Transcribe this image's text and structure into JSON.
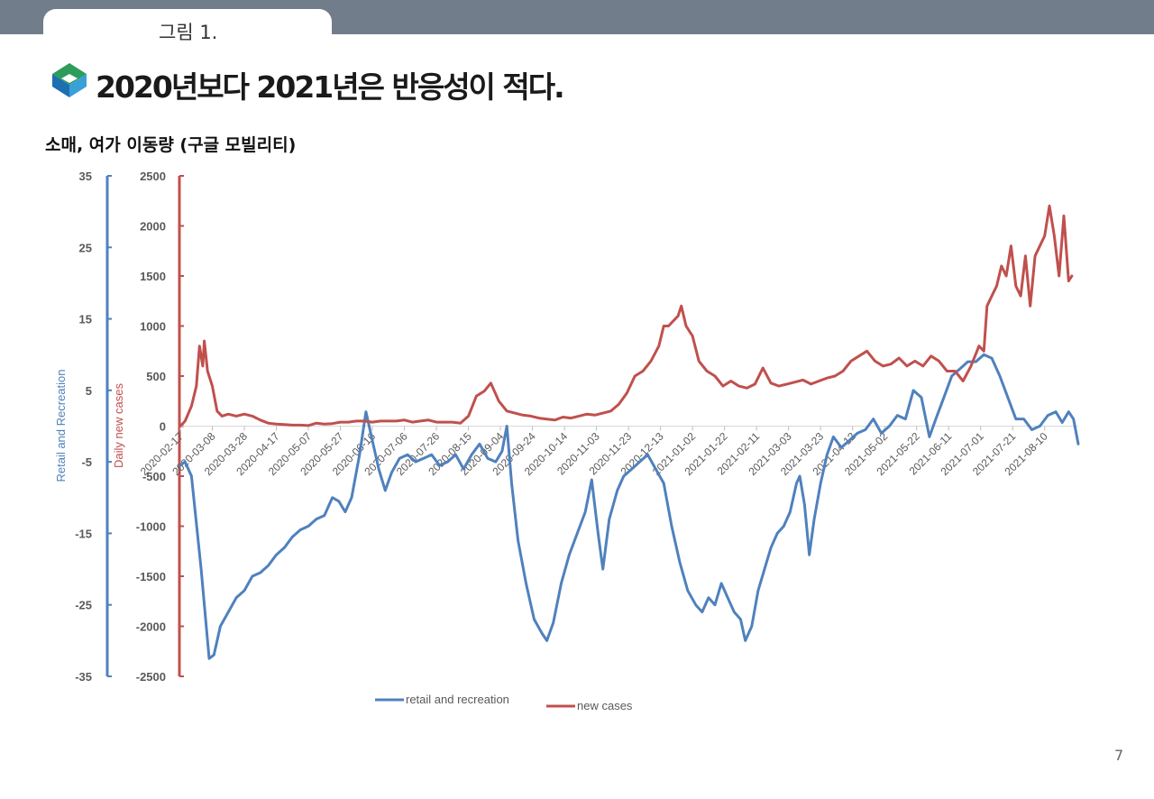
{
  "header": {
    "tab_label": "그림 1."
  },
  "title": "2020년보다 2021년은 반응성이 적다.",
  "subtitle": "소매, 여가 이동량 (구글 모빌리티)",
  "page_number": "7",
  "colors": {
    "retail": "#4f81bd",
    "cases": "#c0504d",
    "topbar": "#717d8b"
  },
  "chart_data": {
    "type": "line",
    "x_tick_labels": [
      "2020-02-17",
      "2020-03-08",
      "2020-03-28",
      "2020-04-17",
      "2020-05-07",
      "2020-05-27",
      "2020-06-16",
      "2020-07-06",
      "2020-07-26",
      "2020-08-15",
      "2020-09-04",
      "2020-09-24",
      "2020-10-14",
      "2020-11-03",
      "2020-11-23",
      "2020-12-13",
      "2021-01-02",
      "2021-01-22",
      "2021-02-11",
      "2021-03-03",
      "2021-03-23",
      "2021-04-12",
      "2021-05-02",
      "2021-05-22",
      "2021-06-11",
      "2021-07-01",
      "2021-07-21",
      "2021-08-10"
    ],
    "left_axis": {
      "title": "Retail and Recreation",
      "ticks": [
        "35",
        "25",
        "15",
        "5",
        "-5",
        "-15",
        "-25",
        "-35"
      ],
      "range": [
        -35,
        35
      ]
    },
    "right_axis": {
      "title": "Daily new cases",
      "ticks": [
        "2500",
        "2000",
        "1500",
        "1000",
        "500",
        "0",
        "-500",
        "-1000",
        "-1500",
        "-2000",
        "-2500"
      ],
      "range": [
        -2500,
        2500
      ]
    },
    "series": [
      {
        "name": "retail and recreation",
        "axis": "left",
        "points": [
          [
            "2020-02-17",
            -5.5
          ],
          [
            "2020-02-20",
            -5
          ],
          [
            "2020-02-24",
            -7
          ],
          [
            "2020-03-01",
            -20
          ],
          [
            "2020-03-06",
            -32.5
          ],
          [
            "2020-03-09",
            -32
          ],
          [
            "2020-03-13",
            -28
          ],
          [
            "2020-03-18",
            -26
          ],
          [
            "2020-03-23",
            -24
          ],
          [
            "2020-03-28",
            -23
          ],
          [
            "2020-04-02",
            -21
          ],
          [
            "2020-04-07",
            -20.5
          ],
          [
            "2020-04-12",
            -19.5
          ],
          [
            "2020-04-17",
            -18
          ],
          [
            "2020-04-22",
            -17
          ],
          [
            "2020-04-27",
            -15.5
          ],
          [
            "2020-05-02",
            -14.5
          ],
          [
            "2020-05-07",
            -14
          ],
          [
            "2020-05-12",
            -13
          ],
          [
            "2020-05-17",
            -12.5
          ],
          [
            "2020-05-22",
            -10
          ],
          [
            "2020-05-26",
            -10.5
          ],
          [
            "2020-05-30",
            -12
          ],
          [
            "2020-06-03",
            -10
          ],
          [
            "2020-06-08",
            -4
          ],
          [
            "2020-06-12",
            2
          ],
          [
            "2020-06-16",
            -2
          ],
          [
            "2020-06-20",
            -6
          ],
          [
            "2020-06-24",
            -9
          ],
          [
            "2020-06-28",
            -6.5
          ],
          [
            "2020-07-03",
            -4.5
          ],
          [
            "2020-07-08",
            -4
          ],
          [
            "2020-07-13",
            -5
          ],
          [
            "2020-07-18",
            -4.5
          ],
          [
            "2020-07-23",
            -4
          ],
          [
            "2020-07-28",
            -5.5
          ],
          [
            "2020-08-02",
            -5
          ],
          [
            "2020-08-07",
            -4
          ],
          [
            "2020-08-12",
            -6
          ],
          [
            "2020-08-17",
            -4
          ],
          [
            "2020-08-22",
            -2.5
          ],
          [
            "2020-08-27",
            -4.5
          ],
          [
            "2020-09-01",
            -5
          ],
          [
            "2020-09-05",
            -3.5
          ],
          [
            "2020-09-08",
            0
          ],
          [
            "2020-09-11",
            -8
          ],
          [
            "2020-09-15",
            -16
          ],
          [
            "2020-09-20",
            -22
          ],
          [
            "2020-09-25",
            -27
          ],
          [
            "2020-09-30",
            -29
          ],
          [
            "2020-10-03",
            -30
          ],
          [
            "2020-10-07",
            -27.5
          ],
          [
            "2020-10-12",
            -22
          ],
          [
            "2020-10-17",
            -18
          ],
          [
            "2020-10-22",
            -15
          ],
          [
            "2020-10-27",
            -12
          ],
          [
            "2020-10-31",
            -7.5
          ],
          [
            "2020-11-04",
            -15
          ],
          [
            "2020-11-07",
            -20
          ],
          [
            "2020-11-11",
            -13
          ],
          [
            "2020-11-16",
            -9
          ],
          [
            "2020-11-20",
            -7
          ],
          [
            "2020-11-25",
            -6
          ],
          [
            "2020-11-30",
            -5
          ],
          [
            "2020-12-05",
            -4
          ],
          [
            "2020-12-10",
            -6
          ],
          [
            "2020-12-15",
            -8
          ],
          [
            "2020-12-20",
            -14
          ],
          [
            "2020-12-25",
            -19
          ],
          [
            "2020-12-30",
            -23
          ],
          [
            "2021-01-04",
            -25
          ],
          [
            "2021-01-08",
            -26
          ],
          [
            "2021-01-12",
            -24
          ],
          [
            "2021-01-16",
            -25
          ],
          [
            "2021-01-20",
            -22
          ],
          [
            "2021-01-24",
            -24
          ],
          [
            "2021-01-28",
            -26
          ],
          [
            "2021-02-01",
            -27
          ],
          [
            "2021-02-04",
            -30
          ],
          [
            "2021-02-08",
            -28
          ],
          [
            "2021-02-12",
            -23
          ],
          [
            "2021-02-16",
            -20
          ],
          [
            "2021-02-20",
            -17
          ],
          [
            "2021-02-24",
            -15
          ],
          [
            "2021-02-28",
            -14
          ],
          [
            "2021-03-04",
            -12
          ],
          [
            "2021-03-08",
            -8
          ],
          [
            "2021-03-10",
            -7
          ],
          [
            "2021-03-13",
            -11
          ],
          [
            "2021-03-16",
            -18
          ],
          [
            "2021-03-19",
            -13
          ],
          [
            "2021-03-23",
            -8
          ],
          [
            "2021-03-27",
            -4
          ],
          [
            "2021-03-31",
            -1.5
          ],
          [
            "2021-04-05",
            -3
          ],
          [
            "2021-04-10",
            -2
          ],
          [
            "2021-04-15",
            -1
          ],
          [
            "2021-04-20",
            -0.5
          ],
          [
            "2021-04-25",
            1
          ],
          [
            "2021-04-30",
            -1
          ],
          [
            "2021-05-05",
            0
          ],
          [
            "2021-05-10",
            1.5
          ],
          [
            "2021-05-15",
            1
          ],
          [
            "2021-05-20",
            5
          ],
          [
            "2021-05-25",
            4
          ],
          [
            "2021-05-30",
            -1.5
          ],
          [
            "2021-06-03",
            1
          ],
          [
            "2021-06-08",
            4
          ],
          [
            "2021-06-13",
            7
          ],
          [
            "2021-06-18",
            8
          ],
          [
            "2021-06-23",
            9
          ],
          [
            "2021-06-28",
            9
          ],
          [
            "2021-07-03",
            10
          ],
          [
            "2021-07-08",
            9.5
          ],
          [
            "2021-07-13",
            7
          ],
          [
            "2021-07-18",
            4
          ],
          [
            "2021-07-23",
            1
          ],
          [
            "2021-07-28",
            1
          ],
          [
            "2021-08-02",
            -0.5
          ],
          [
            "2021-08-07",
            0
          ],
          [
            "2021-08-12",
            1.5
          ],
          [
            "2021-08-17",
            2
          ],
          [
            "2021-08-21",
            0.5
          ],
          [
            "2021-08-25",
            2
          ],
          [
            "2021-08-28",
            1
          ],
          [
            "2021-08-31",
            -2.5
          ]
        ]
      },
      {
        "name": "new cases",
        "axis": "right",
        "points": [
          [
            "2020-02-17",
            0
          ],
          [
            "2020-02-20",
            50
          ],
          [
            "2020-02-24",
            200
          ],
          [
            "2020-02-27",
            400
          ],
          [
            "2020-02-29",
            800
          ],
          [
            "2020-03-02",
            600
          ],
          [
            "2020-03-03",
            850
          ],
          [
            "2020-03-05",
            550
          ],
          [
            "2020-03-08",
            400
          ],
          [
            "2020-03-11",
            150
          ],
          [
            "2020-03-14",
            100
          ],
          [
            "2020-03-18",
            120
          ],
          [
            "2020-03-23",
            100
          ],
          [
            "2020-03-28",
            120
          ],
          [
            "2020-04-02",
            100
          ],
          [
            "2020-04-07",
            60
          ],
          [
            "2020-04-12",
            30
          ],
          [
            "2020-04-17",
            20
          ],
          [
            "2020-04-22",
            15
          ],
          [
            "2020-04-27",
            10
          ],
          [
            "2020-05-02",
            10
          ],
          [
            "2020-05-07",
            5
          ],
          [
            "2020-05-12",
            30
          ],
          [
            "2020-05-17",
            20
          ],
          [
            "2020-05-22",
            25
          ],
          [
            "2020-05-27",
            40
          ],
          [
            "2020-06-01",
            40
          ],
          [
            "2020-06-06",
            50
          ],
          [
            "2020-06-11",
            50
          ],
          [
            "2020-06-16",
            40
          ],
          [
            "2020-06-21",
            50
          ],
          [
            "2020-06-26",
            50
          ],
          [
            "2020-07-01",
            50
          ],
          [
            "2020-07-06",
            60
          ],
          [
            "2020-07-11",
            40
          ],
          [
            "2020-07-16",
            50
          ],
          [
            "2020-07-21",
            60
          ],
          [
            "2020-07-26",
            40
          ],
          [
            "2020-07-31",
            40
          ],
          [
            "2020-08-05",
            40
          ],
          [
            "2020-08-10",
            30
          ],
          [
            "2020-08-15",
            100
          ],
          [
            "2020-08-20",
            300
          ],
          [
            "2020-08-25",
            350
          ],
          [
            "2020-08-29",
            430
          ],
          [
            "2020-09-03",
            250
          ],
          [
            "2020-09-08",
            150
          ],
          [
            "2020-09-13",
            130
          ],
          [
            "2020-09-18",
            110
          ],
          [
            "2020-09-23",
            100
          ],
          [
            "2020-09-28",
            80
          ],
          [
            "2020-10-03",
            70
          ],
          [
            "2020-10-08",
            60
          ],
          [
            "2020-10-13",
            90
          ],
          [
            "2020-10-18",
            80
          ],
          [
            "2020-10-23",
            100
          ],
          [
            "2020-10-28",
            120
          ],
          [
            "2020-11-02",
            110
          ],
          [
            "2020-11-07",
            130
          ],
          [
            "2020-11-12",
            150
          ],
          [
            "2020-11-17",
            220
          ],
          [
            "2020-11-22",
            330
          ],
          [
            "2020-11-27",
            500
          ],
          [
            "2020-12-02",
            550
          ],
          [
            "2020-12-07",
            650
          ],
          [
            "2020-12-12",
            800
          ],
          [
            "2020-12-15",
            1000
          ],
          [
            "2020-12-18",
            1000
          ],
          [
            "2020-12-21",
            1050
          ],
          [
            "2020-12-24",
            1100
          ],
          [
            "2020-12-26",
            1200
          ],
          [
            "2020-12-29",
            1000
          ],
          [
            "2021-01-02",
            900
          ],
          [
            "2021-01-06",
            650
          ],
          [
            "2021-01-11",
            550
          ],
          [
            "2021-01-16",
            500
          ],
          [
            "2021-01-21",
            400
          ],
          [
            "2021-01-26",
            450
          ],
          [
            "2021-01-31",
            400
          ],
          [
            "2021-02-05",
            380
          ],
          [
            "2021-02-10",
            420
          ],
          [
            "2021-02-15",
            580
          ],
          [
            "2021-02-20",
            430
          ],
          [
            "2021-02-25",
            400
          ],
          [
            "2021-03-02",
            420
          ],
          [
            "2021-03-07",
            440
          ],
          [
            "2021-03-12",
            460
          ],
          [
            "2021-03-17",
            420
          ],
          [
            "2021-03-22",
            450
          ],
          [
            "2021-03-27",
            480
          ],
          [
            "2021-04-01",
            500
          ],
          [
            "2021-04-06",
            550
          ],
          [
            "2021-04-11",
            650
          ],
          [
            "2021-04-16",
            700
          ],
          [
            "2021-04-21",
            750
          ],
          [
            "2021-04-26",
            650
          ],
          [
            "2021-05-01",
            600
          ],
          [
            "2021-05-06",
            620
          ],
          [
            "2021-05-11",
            680
          ],
          [
            "2021-05-16",
            600
          ],
          [
            "2021-05-21",
            650
          ],
          [
            "2021-05-26",
            600
          ],
          [
            "2021-05-31",
            700
          ],
          [
            "2021-06-05",
            650
          ],
          [
            "2021-06-10",
            550
          ],
          [
            "2021-06-15",
            550
          ],
          [
            "2021-06-20",
            450
          ],
          [
            "2021-06-25",
            600
          ],
          [
            "2021-06-30",
            800
          ],
          [
            "2021-07-03",
            750
          ],
          [
            "2021-07-05",
            1200
          ],
          [
            "2021-07-08",
            1300
          ],
          [
            "2021-07-11",
            1400
          ],
          [
            "2021-07-14",
            1600
          ],
          [
            "2021-07-17",
            1500
          ],
          [
            "2021-07-20",
            1800
          ],
          [
            "2021-07-23",
            1400
          ],
          [
            "2021-07-26",
            1300
          ],
          [
            "2021-07-29",
            1700
          ],
          [
            "2021-08-01",
            1200
          ],
          [
            "2021-08-04",
            1700
          ],
          [
            "2021-08-07",
            1800
          ],
          [
            "2021-08-10",
            1900
          ],
          [
            "2021-08-13",
            2200
          ],
          [
            "2021-08-16",
            1900
          ],
          [
            "2021-08-19",
            1500
          ],
          [
            "2021-08-22",
            2100
          ],
          [
            "2021-08-25",
            1450
          ],
          [
            "2021-08-27",
            1500
          ]
        ]
      }
    ]
  }
}
